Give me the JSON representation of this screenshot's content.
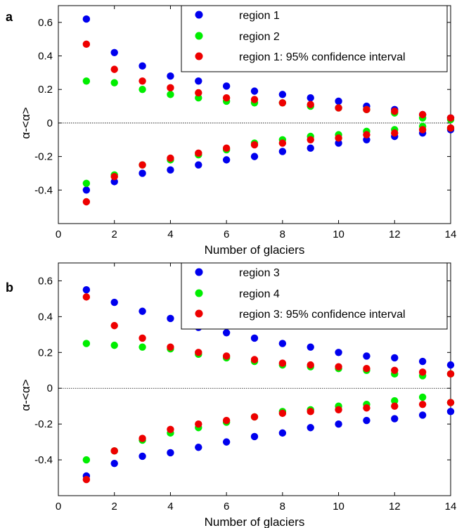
{
  "chart_data": [
    {
      "type": "scatter",
      "panel_label": "a",
      "xlabel": "Number of glaciers",
      "ylabel": "α-<α>",
      "xlim": [
        0,
        14
      ],
      "ylim": [
        -0.6,
        0.7
      ],
      "xticks": [
        0,
        2,
        4,
        6,
        8,
        10,
        12,
        14
      ],
      "yticks": [
        -0.4,
        -0.2,
        0,
        0.2,
        0.4,
        0.6
      ],
      "xtick_labels": [
        "0",
        "2",
        "4",
        "6",
        "8",
        "10",
        "12",
        "14"
      ],
      "ytick_labels": [
        "-0.4",
        "-0.2",
        "0",
        "0.2",
        "0.4",
        "0.6"
      ],
      "zero_line": true,
      "legend_position": "top-right",
      "series": [
        {
          "name": "region 1",
          "color": "#0000ee",
          "x": [
            1,
            2,
            3,
            4,
            5,
            6,
            7,
            8,
            9,
            10,
            11,
            12,
            13,
            14,
            1,
            2,
            3,
            4,
            5,
            6,
            7,
            8,
            9,
            10,
            11,
            12,
            13,
            14
          ],
          "y": [
            0.62,
            0.42,
            0.34,
            0.28,
            0.25,
            0.22,
            0.19,
            0.17,
            0.15,
            0.13,
            0.1,
            0.08,
            0.05,
            0.03,
            -0.4,
            -0.35,
            -0.3,
            -0.28,
            -0.25,
            -0.22,
            -0.2,
            -0.17,
            -0.15,
            -0.12,
            -0.1,
            -0.08,
            -0.06,
            -0.04
          ]
        },
        {
          "name": "region 2",
          "color": "#00ee00",
          "x": [
            1,
            2,
            3,
            4,
            5,
            6,
            7,
            8,
            9,
            10,
            11,
            12,
            13,
            14,
            1,
            2,
            3,
            4,
            5,
            6,
            7,
            8,
            9,
            10,
            11,
            12,
            13,
            14
          ],
          "y": [
            0.25,
            0.24,
            0.2,
            0.17,
            0.15,
            0.13,
            0.12,
            0.12,
            0.1,
            0.09,
            0.08,
            0.06,
            0.03,
            0.02,
            -0.36,
            -0.31,
            -0.25,
            -0.22,
            -0.19,
            -0.16,
            -0.12,
            -0.1,
            -0.08,
            -0.07,
            -0.05,
            -0.04,
            -0.02,
            -0.03
          ]
        },
        {
          "name": "region 1: 95% confidence interval",
          "color": "#ee0000",
          "x": [
            1,
            2,
            3,
            4,
            5,
            6,
            7,
            8,
            9,
            10,
            11,
            12,
            13,
            14,
            1,
            2,
            3,
            4,
            5,
            6,
            7,
            8,
            9,
            10,
            11,
            12,
            13,
            14
          ],
          "y": [
            0.47,
            0.32,
            0.25,
            0.21,
            0.18,
            0.15,
            0.14,
            0.12,
            0.11,
            0.09,
            0.08,
            0.07,
            0.05,
            0.03,
            -0.47,
            -0.32,
            -0.25,
            -0.21,
            -0.18,
            -0.15,
            -0.13,
            -0.12,
            -0.1,
            -0.09,
            -0.07,
            -0.06,
            -0.04,
            -0.03
          ]
        }
      ]
    },
    {
      "type": "scatter",
      "panel_label": "b",
      "xlabel": "Number of glaciers",
      "ylabel": "α-<α>",
      "xlim": [
        0,
        14
      ],
      "ylim": [
        -0.6,
        0.7
      ],
      "xticks": [
        0,
        2,
        4,
        6,
        8,
        10,
        12,
        14
      ],
      "yticks": [
        -0.4,
        -0.2,
        0,
        0.2,
        0.4,
        0.6
      ],
      "xtick_labels": [
        "0",
        "2",
        "4",
        "6",
        "8",
        "10",
        "12",
        "14"
      ],
      "ytick_labels": [
        "-0.4",
        "-0.2",
        "0",
        "0.2",
        "0.4",
        "0.6"
      ],
      "zero_line": true,
      "legend_position": "top-right",
      "series": [
        {
          "name": "region 3",
          "color": "#0000ee",
          "x": [
            1,
            2,
            3,
            4,
            5,
            6,
            7,
            8,
            9,
            10,
            11,
            12,
            13,
            14,
            1,
            2,
            3,
            4,
            5,
            6,
            7,
            8,
            9,
            10,
            11,
            12,
            13,
            14
          ],
          "y": [
            0.55,
            0.48,
            0.43,
            0.39,
            0.34,
            0.31,
            0.28,
            0.25,
            0.23,
            0.2,
            0.18,
            0.17,
            0.15,
            0.13,
            -0.49,
            -0.42,
            -0.38,
            -0.36,
            -0.33,
            -0.3,
            -0.27,
            -0.25,
            -0.22,
            -0.2,
            -0.18,
            -0.17,
            -0.15,
            -0.13
          ]
        },
        {
          "name": "region 4",
          "color": "#00ee00",
          "x": [
            1,
            2,
            3,
            4,
            5,
            6,
            7,
            8,
            9,
            10,
            11,
            12,
            13,
            14,
            1,
            2,
            3,
            4,
            5,
            6,
            7,
            8,
            9,
            10,
            11,
            12,
            13,
            14
          ],
          "y": [
            0.25,
            0.24,
            0.23,
            0.22,
            0.19,
            0.17,
            0.15,
            0.13,
            0.12,
            0.11,
            0.1,
            0.08,
            0.07,
            0.08,
            -0.4,
            -0.35,
            -0.29,
            -0.25,
            -0.22,
            -0.19,
            -0.16,
            -0.13,
            -0.12,
            -0.1,
            -0.09,
            -0.07,
            -0.05,
            -0.08
          ]
        },
        {
          "name": "region 3: 95% confidence interval",
          "color": "#ee0000",
          "x": [
            1,
            2,
            3,
            4,
            5,
            6,
            7,
            8,
            9,
            10,
            11,
            12,
            13,
            14,
            1,
            2,
            3,
            4,
            5,
            6,
            7,
            8,
            9,
            10,
            11,
            12,
            13,
            14
          ],
          "y": [
            0.51,
            0.35,
            0.28,
            0.23,
            0.2,
            0.18,
            0.16,
            0.14,
            0.13,
            0.12,
            0.11,
            0.1,
            0.09,
            0.08,
            -0.51,
            -0.35,
            -0.28,
            -0.23,
            -0.2,
            -0.18,
            -0.16,
            -0.14,
            -0.13,
            -0.12,
            -0.11,
            -0.1,
            -0.09,
            -0.08
          ]
        }
      ]
    }
  ]
}
